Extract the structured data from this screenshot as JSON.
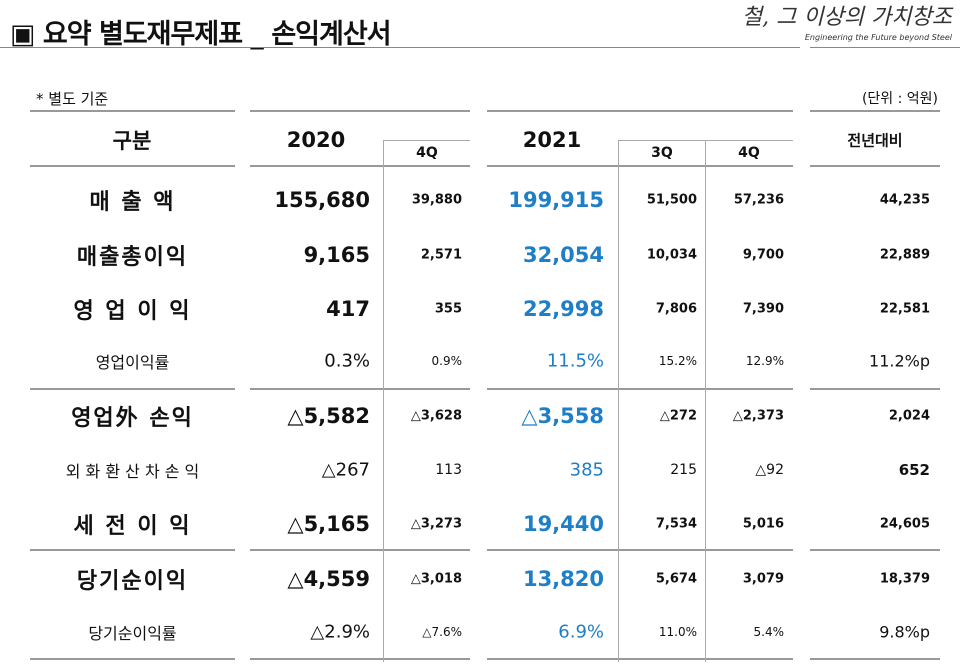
{
  "title": "▣ 요약 별도재무제표 _ 손익계산서",
  "logo": {
    "korean": "철, 그 이상의 가치창조",
    "english": "Engineering the Future beyond Steel"
  },
  "basis_note": "* 별도 기준",
  "unit_note": "(단위 : 억원)",
  "headers": {
    "category": "구분",
    "y2020": "2020",
    "q4_2020": "4Q",
    "y2021": "2021",
    "q3_2021": "3Q",
    "q4_2021": "4Q",
    "yoy": "전년대비"
  },
  "rows": [
    {
      "label": "매   출   액",
      "v2020": "155,680",
      "q4_2020": "39,880",
      "v2021": "199,915",
      "q3_2021": "51,500",
      "q4_2021": "57,236",
      "yoy": "44,235"
    },
    {
      "label": "매출총이익",
      "v2020": "9,165",
      "q4_2020": "2,571",
      "v2021": "32,054",
      "q3_2021": "10,034",
      "q4_2021": "9,700",
      "yoy": "22,889"
    },
    {
      "label": "영 업 이 익",
      "v2020": "417",
      "q4_2020": "355",
      "v2021": "22,998",
      "q3_2021": "7,806",
      "q4_2021": "7,390",
      "yoy": "22,581"
    },
    {
      "label": "영업이익률",
      "v2020": "0.3%",
      "q4_2020": "0.9%",
      "v2021": "11.5%",
      "q3_2021": "15.2%",
      "q4_2021": "12.9%",
      "yoy": "11.2%p"
    },
    {
      "label": "영업外 손익",
      "v2020": "△5,582",
      "q4_2020": "△3,628",
      "v2021": "△3,558",
      "q3_2021": "△272",
      "q4_2021": "△2,373",
      "yoy": "2,024"
    },
    {
      "label": "외 화 환 산 차 손 익",
      "v2020": "△267",
      "q4_2020": "113",
      "v2021": "385",
      "q3_2021": "215",
      "q4_2021": "△92",
      "yoy": "652"
    },
    {
      "label": "세 전 이 익",
      "v2020": "△5,165",
      "q4_2020": "△3,273",
      "v2021": "19,440",
      "q3_2021": "7,534",
      "q4_2021": "5,016",
      "yoy": "24,605"
    },
    {
      "label": "당기순이익",
      "v2020": "△4,559",
      "q4_2020": "△3,018",
      "v2021": "13,820",
      "q3_2021": "5,674",
      "q4_2021": "3,079",
      "yoy": "18,379"
    },
    {
      "label": "당기순이익률",
      "v2020": "△2.9%",
      "q4_2020": "△7.6%",
      "v2021": "6.9%",
      "q3_2021": "11.0%",
      "q4_2021": "5.4%",
      "yoy": "9.8%p"
    }
  ]
}
